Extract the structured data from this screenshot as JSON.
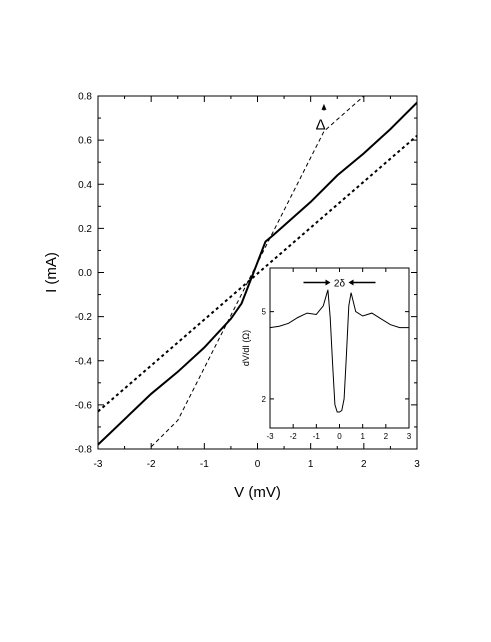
{
  "chart_data": [
    {
      "type": "line",
      "xlabel": "V (mV)",
      "ylabel": "I (mA)",
      "xlim": [
        -3,
        3
      ],
      "ylim": [
        -0.8,
        0.8
      ],
      "xticks": [
        -3,
        -2,
        -1,
        0,
        1,
        2,
        3
      ],
      "yticks": [
        -0.8,
        -0.6,
        -0.4,
        -0.2,
        0.0,
        0.2,
        0.4,
        0.6,
        0.8
      ],
      "xtick_labels": [
        "-3",
        "-2",
        "-1",
        "0",
        "1",
        "2",
        "3"
      ],
      "ytick_labels": [
        "-0.8",
        "-0.6",
        "-0.4",
        "-0.2",
        "0.0",
        "0.2",
        "0.4",
        "0.6",
        "0.8"
      ],
      "grid": false,
      "annotations": [
        {
          "text": "Δ",
          "x": 1.15,
          "y": 0.67,
          "arrow_to": [
            1.25,
            0.76
          ]
        }
      ],
      "series": [
        {
          "style": "solid",
          "x": [
            -3.0,
            -2.0,
            -1.5,
            -1.0,
            -0.5,
            -0.3,
            0.15,
            0.3,
            1.0,
            1.5,
            2.0,
            2.5,
            3.0
          ],
          "y": [
            -0.78,
            -0.55,
            -0.45,
            -0.34,
            -0.21,
            -0.14,
            0.14,
            0.17,
            0.32,
            0.44,
            0.54,
            0.65,
            0.77
          ]
        },
        {
          "style": "dotted",
          "x": [
            -3.0,
            3.0
          ],
          "y": [
            -0.63,
            0.62
          ]
        },
        {
          "style": "dashed",
          "x": [
            -2.0,
            -1.5,
            1.25,
            2.0
          ],
          "y": [
            -0.79,
            -0.67,
            0.64,
            0.8
          ]
        }
      ]
    },
    {
      "type": "line",
      "inset": true,
      "xlabel": "",
      "ylabel": "dV/dI (Ω)",
      "xlim": [
        -3,
        3
      ],
      "ylim": [
        1.0,
        6.5
      ],
      "xticks": [
        -3,
        -2,
        -1,
        0,
        1,
        2,
        3
      ],
      "yticks": [
        2,
        5
      ],
      "xtick_labels": [
        "-3",
        "-2",
        "-1",
        "0",
        "1",
        "2",
        "3"
      ],
      "ytick_labels": [
        "2",
        "5"
      ],
      "annotations": [
        {
          "text": "2δ",
          "x": 0.0,
          "y": 6.0
        }
      ],
      "series": [
        {
          "style": "solid",
          "x": [
            -3.0,
            -2.6,
            -2.2,
            -1.8,
            -1.4,
            -1.0,
            -0.7,
            -0.5,
            -0.4,
            -0.3,
            -0.2,
            -0.1,
            0.0,
            0.1,
            0.2,
            0.3,
            0.4,
            0.5,
            0.7,
            1.0,
            1.4,
            1.8,
            2.2,
            2.6,
            3.0
          ],
          "y": [
            4.45,
            4.5,
            4.6,
            4.8,
            4.95,
            4.9,
            5.2,
            5.75,
            4.8,
            3.2,
            1.8,
            1.55,
            1.55,
            1.6,
            2.0,
            3.5,
            5.2,
            5.65,
            5.0,
            4.85,
            4.95,
            4.75,
            4.55,
            4.45,
            4.45
          ]
        }
      ]
    }
  ]
}
